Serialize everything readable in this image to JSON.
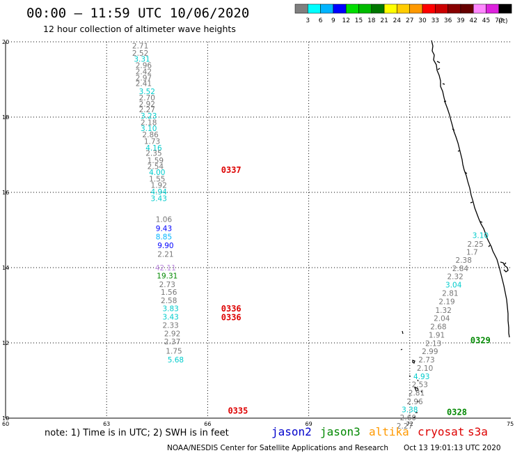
{
  "header": {
    "title": "00:00 – 11:59 UTC 10/06/2020",
    "subtitle": "12 hour collection of altimeter wave heights"
  },
  "legend": {
    "unit": "(ft)",
    "colors": [
      "#7f7f7f",
      "#00ffff",
      "#00b4ff",
      "#0000ff",
      "#00dd00",
      "#00bb00",
      "#007700",
      "#ffff00",
      "#ffcc00",
      "#ff9900",
      "#ff0000",
      "#cc0000",
      "#880000",
      "#660000",
      "#ff88ff",
      "#dd22dd",
      "#000000"
    ],
    "labels": [
      "3",
      "6",
      "9",
      "12",
      "15",
      "18",
      "21",
      "24",
      "27",
      "30",
      "33",
      "36",
      "39",
      "42",
      "45",
      "70"
    ]
  },
  "chart_data": {
    "type": "scatter",
    "x_ticks": [
      "60",
      "63",
      "66",
      "69",
      "72",
      "75"
    ],
    "y_ticks": [
      "10",
      "12",
      "14",
      "16",
      "18",
      "20"
    ],
    "xlim": [
      60,
      75
    ],
    "ylim": [
      10,
      20
    ],
    "grid": true,
    "satellite_colors": {
      "jason2": "#0000cc",
      "jason3": "#008800",
      "altika": "#ff9900",
      "cryosat": "#dd0000",
      "s3a": "#dd0000"
    },
    "track_labels": [
      {
        "text": "0337",
        "x": 66.4,
        "y": 16.52
      },
      {
        "text": "0336",
        "x": 66.4,
        "y": 12.83
      },
      {
        "text": "0336",
        "x": 66.4,
        "y": 12.6
      },
      {
        "text": "0335",
        "x": 66.6,
        "y": 10.12
      },
      {
        "text": "0329",
        "x": 73.8,
        "y": 11.99
      },
      {
        "text": "0328",
        "x": 73.1,
        "y": 10.08
      }
    ],
    "series": [
      {
        "name": "western track",
        "points": [
          {
            "x": 64.0,
            "y": 19.82,
            "v": "2.71",
            "c": "#777777"
          },
          {
            "x": 64.0,
            "y": 19.63,
            "v": "2.52",
            "c": "#777777"
          },
          {
            "x": 64.05,
            "y": 19.47,
            "v": "3.31",
            "c": "#00cccc"
          },
          {
            "x": 64.1,
            "y": 19.31,
            "v": "2.96",
            "c": "#777777"
          },
          {
            "x": 64.1,
            "y": 19.14,
            "v": "2.42",
            "c": "#777777"
          },
          {
            "x": 64.1,
            "y": 18.97,
            "v": "2.97",
            "c": "#777777"
          },
          {
            "x": 64.1,
            "y": 18.82,
            "v": "2.41",
            "c": "#777777"
          },
          {
            "x": 64.2,
            "y": 18.61,
            "v": "3.52",
            "c": "#00cccc"
          },
          {
            "x": 64.2,
            "y": 18.44,
            "v": "2.70",
            "c": "#777777"
          },
          {
            "x": 64.2,
            "y": 18.28,
            "v": "2.92",
            "c": "#777777"
          },
          {
            "x": 64.2,
            "y": 18.13,
            "v": "2.27",
            "c": "#777777"
          },
          {
            "x": 64.25,
            "y": 17.96,
            "v": "3.23",
            "c": "#00cccc"
          },
          {
            "x": 64.25,
            "y": 17.79,
            "v": "2.18",
            "c": "#777777"
          },
          {
            "x": 64.25,
            "y": 17.63,
            "v": "3.10",
            "c": "#00cccc"
          },
          {
            "x": 64.3,
            "y": 17.46,
            "v": "2.86",
            "c": "#777777"
          },
          {
            "x": 64.35,
            "y": 17.29,
            "v": "1.73",
            "c": "#777777"
          },
          {
            "x": 64.4,
            "y": 17.11,
            "v": "4.16",
            "c": "#00cccc"
          },
          {
            "x": 64.4,
            "y": 16.97,
            "v": "2.35",
            "c": "#777777"
          },
          {
            "x": 64.45,
            "y": 16.78,
            "v": "1.59",
            "c": "#777777"
          },
          {
            "x": 64.45,
            "y": 16.62,
            "v": "2.54",
            "c": "#777777"
          },
          {
            "x": 64.5,
            "y": 16.46,
            "v": "4.00",
            "c": "#00cccc"
          },
          {
            "x": 64.5,
            "y": 16.29,
            "v": "1.55",
            "c": "#777777"
          },
          {
            "x": 64.55,
            "y": 16.12,
            "v": "1.92",
            "c": "#777777"
          },
          {
            "x": 64.55,
            "y": 15.94,
            "v": "4.94",
            "c": "#00cccc"
          },
          {
            "x": 64.55,
            "y": 15.77,
            "v": "3.43",
            "c": "#00cccc"
          },
          {
            "x": 64.7,
            "y": 15.21,
            "v": "1.06",
            "c": "#777777"
          },
          {
            "x": 64.7,
            "y": 14.97,
            "v": "9.43",
            "c": "#0000ff"
          },
          {
            "x": 64.7,
            "y": 14.75,
            "v": "8.85",
            "c": "#00b4ff"
          },
          {
            "x": 64.75,
            "y": 14.52,
            "v": "9.90",
            "c": "#0000ff"
          },
          {
            "x": 64.75,
            "y": 14.29,
            "v": "2.21",
            "c": "#777777"
          },
          {
            "x": 64.75,
            "y": 13.93,
            "v": "42.11",
            "c": "#bb88dd"
          },
          {
            "x": 64.8,
            "y": 13.71,
            "v": "19.31",
            "c": "#008800"
          },
          {
            "x": 64.8,
            "y": 13.48,
            "v": "2.73",
            "c": "#777777"
          },
          {
            "x": 64.85,
            "y": 13.28,
            "v": "1.56",
            "c": "#777777"
          },
          {
            "x": 64.85,
            "y": 13.06,
            "v": "2.58",
            "c": "#777777"
          },
          {
            "x": 64.9,
            "y": 12.84,
            "v": "3.83",
            "c": "#00cccc"
          },
          {
            "x": 64.9,
            "y": 12.62,
            "v": "3.43",
            "c": "#00cccc"
          },
          {
            "x": 64.9,
            "y": 12.4,
            "v": "2.33",
            "c": "#777777"
          },
          {
            "x": 64.95,
            "y": 12.18,
            "v": "2.92",
            "c": "#777777"
          },
          {
            "x": 64.95,
            "y": 11.96,
            "v": "2.37",
            "c": "#777777"
          },
          {
            "x": 65.0,
            "y": 11.71,
            "v": "1.75",
            "c": "#777777"
          },
          {
            "x": 65.05,
            "y": 11.48,
            "v": "5.68",
            "c": "#00cccc"
          }
        ]
      },
      {
        "name": "eastern track",
        "points": [
          {
            "x": 74.1,
            "y": 14.79,
            "v": "3.10",
            "c": "#00cccc"
          },
          {
            "x": 73.95,
            "y": 14.56,
            "v": "2.25",
            "c": "#777777"
          },
          {
            "x": 73.85,
            "y": 14.34,
            "v": "1.7",
            "c": "#777777"
          },
          {
            "x": 73.6,
            "y": 14.13,
            "v": "2.38",
            "c": "#777777"
          },
          {
            "x": 73.5,
            "y": 13.91,
            "v": "2.84",
            "c": "#777777"
          },
          {
            "x": 73.35,
            "y": 13.69,
            "v": "2.32",
            "c": "#777777"
          },
          {
            "x": 73.3,
            "y": 13.47,
            "v": "3.04",
            "c": "#00cccc"
          },
          {
            "x": 73.2,
            "y": 13.25,
            "v": "2.81",
            "c": "#777777"
          },
          {
            "x": 73.1,
            "y": 13.03,
            "v": "2.19",
            "c": "#777777"
          },
          {
            "x": 73.0,
            "y": 12.8,
            "v": "1.32",
            "c": "#777777"
          },
          {
            "x": 72.95,
            "y": 12.58,
            "v": "2.04",
            "c": "#777777"
          },
          {
            "x": 72.85,
            "y": 12.36,
            "v": "2.68",
            "c": "#777777"
          },
          {
            "x": 72.8,
            "y": 12.14,
            "v": "1.91",
            "c": "#777777"
          },
          {
            "x": 72.7,
            "y": 11.92,
            "v": "2.13",
            "c": "#777777"
          },
          {
            "x": 72.6,
            "y": 11.7,
            "v": "2.99",
            "c": "#777777"
          },
          {
            "x": 72.5,
            "y": 11.48,
            "v": "2.73",
            "c": "#777777"
          },
          {
            "x": 72.45,
            "y": 11.26,
            "v": "2.10",
            "c": "#777777"
          },
          {
            "x": 72.35,
            "y": 11.04,
            "v": "4.93",
            "c": "#00cccc"
          },
          {
            "x": 72.3,
            "y": 10.82,
            "v": "2.53",
            "c": "#777777"
          },
          {
            "x": 72.2,
            "y": 10.6,
            "v": "2.81",
            "c": "#777777"
          },
          {
            "x": 72.15,
            "y": 10.37,
            "v": "2.96",
            "c": "#777777"
          },
          {
            "x": 72.0,
            "y": 10.16,
            "v": "3.38",
            "c": "#00cccc"
          },
          {
            "x": 71.95,
            "y": 9.94,
            "v": "2.60",
            "c": "#777777"
          },
          {
            "x": 71.85,
            "y": 9.72,
            "v": "2.27",
            "c": "#777777"
          }
        ]
      }
    ]
  },
  "footer": {
    "note": "note: 1) Time is in UTC; 2) SWH is in feet",
    "satellites": [
      {
        "name": "jason2",
        "color": "#0000cc"
      },
      {
        "name": "jason3",
        "color": "#008800"
      },
      {
        "name": "altika",
        "color": "#ff9900"
      },
      {
        "name": "cryosat",
        "color": "#dd0000"
      },
      {
        "name": "s3a",
        "color": "#dd0000"
      }
    ],
    "credit": "NOAA/NESDIS Center for Satellite Applications and Research",
    "timestamp": "Oct 13 19:01:13 UTC 2020"
  }
}
